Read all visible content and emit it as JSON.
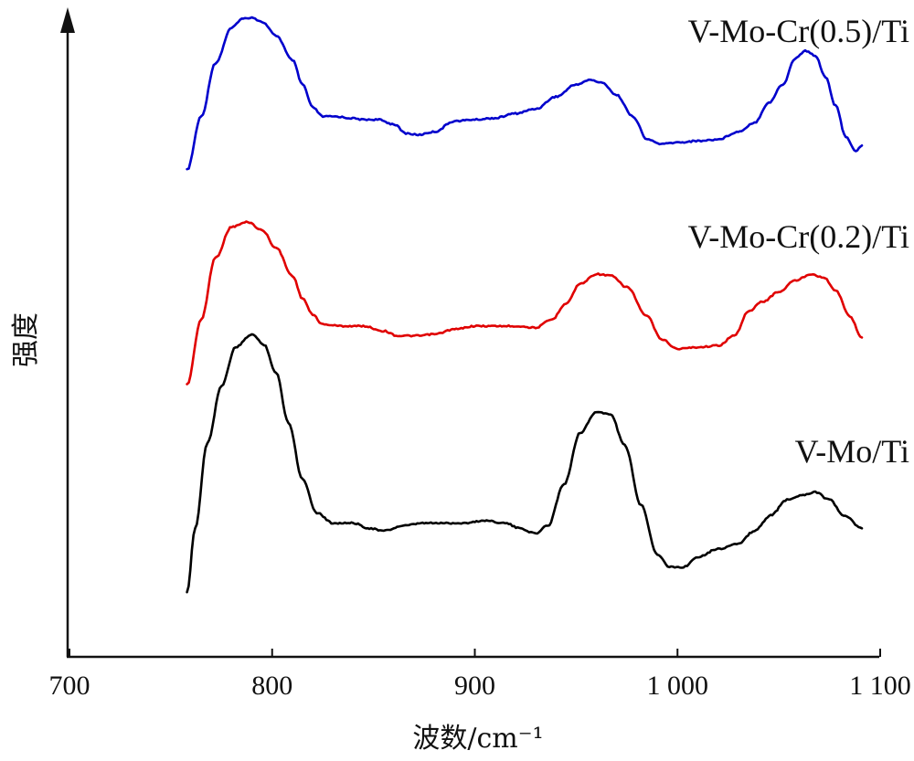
{
  "chart_data": {
    "type": "line",
    "title": "",
    "xlabel": "波数/cm⁻¹",
    "ylabel": "强度",
    "xlim": [
      700,
      1100
    ],
    "x_ticks": [
      700,
      800,
      900,
      1000,
      1100
    ],
    "x_tick_labels": [
      "700",
      "800",
      "900",
      "1 000",
      "1 100"
    ],
    "y_ticks_shown": false,
    "grid": false,
    "legend": "labels placed next to each curve",
    "series": [
      {
        "name": "V-Mo-Cr(0.5)/Ti",
        "color": "#0000cc",
        "points": [
          [
            758,
            0.0
          ],
          [
            765,
            0.35
          ],
          [
            772,
            0.7
          ],
          [
            780,
            0.93
          ],
          [
            785,
            0.99
          ],
          [
            790,
            1.0
          ],
          [
            795,
            0.97
          ],
          [
            802,
            0.88
          ],
          [
            810,
            0.72
          ],
          [
            815,
            0.56
          ],
          [
            820,
            0.41
          ],
          [
            825,
            0.35
          ],
          [
            832,
            0.35
          ],
          [
            838,
            0.34
          ],
          [
            845,
            0.33
          ],
          [
            852,
            0.33
          ],
          [
            860,
            0.3
          ],
          [
            866,
            0.24
          ],
          [
            872,
            0.23
          ],
          [
            880,
            0.25
          ],
          [
            890,
            0.32
          ],
          [
            900,
            0.33
          ],
          [
            910,
            0.34
          ],
          [
            920,
            0.37
          ],
          [
            930,
            0.4
          ],
          [
            940,
            0.48
          ],
          [
            950,
            0.56
          ],
          [
            957,
            0.59
          ],
          [
            963,
            0.57
          ],
          [
            970,
            0.49
          ],
          [
            978,
            0.35
          ],
          [
            985,
            0.2
          ],
          [
            992,
            0.17
          ],
          [
            1000,
            0.18
          ],
          [
            1010,
            0.19
          ],
          [
            1020,
            0.2
          ],
          [
            1030,
            0.25
          ],
          [
            1038,
            0.31
          ],
          [
            1045,
            0.44
          ],
          [
            1052,
            0.56
          ],
          [
            1058,
            0.73
          ],
          [
            1063,
            0.78
          ],
          [
            1068,
            0.75
          ],
          [
            1073,
            0.61
          ],
          [
            1078,
            0.42
          ],
          [
            1083,
            0.22
          ],
          [
            1088,
            0.12
          ],
          [
            1091,
            0.16
          ]
        ]
      },
      {
        "name": "V-Mo-Cr(0.2)/Ti",
        "color": "#e00000",
        "points": [
          [
            758,
            0.0
          ],
          [
            765,
            0.4
          ],
          [
            772,
            0.78
          ],
          [
            780,
            0.97
          ],
          [
            788,
            1.0
          ],
          [
            795,
            0.95
          ],
          [
            802,
            0.84
          ],
          [
            810,
            0.67
          ],
          [
            815,
            0.53
          ],
          [
            820,
            0.43
          ],
          [
            825,
            0.37
          ],
          [
            835,
            0.36
          ],
          [
            845,
            0.36
          ],
          [
            855,
            0.33
          ],
          [
            862,
            0.3
          ],
          [
            872,
            0.3
          ],
          [
            880,
            0.31
          ],
          [
            890,
            0.34
          ],
          [
            900,
            0.36
          ],
          [
            910,
            0.36
          ],
          [
            920,
            0.36
          ],
          [
            930,
            0.35
          ],
          [
            938,
            0.4
          ],
          [
            945,
            0.5
          ],
          [
            952,
            0.62
          ],
          [
            960,
            0.68
          ],
          [
            967,
            0.67
          ],
          [
            975,
            0.6
          ],
          [
            985,
            0.42
          ],
          [
            992,
            0.28
          ],
          [
            1000,
            0.22
          ],
          [
            1010,
            0.23
          ],
          [
            1020,
            0.24
          ],
          [
            1028,
            0.3
          ],
          [
            1035,
            0.45
          ],
          [
            1042,
            0.51
          ],
          [
            1050,
            0.57
          ],
          [
            1058,
            0.64
          ],
          [
            1066,
            0.68
          ],
          [
            1072,
            0.66
          ],
          [
            1078,
            0.58
          ],
          [
            1085,
            0.42
          ],
          [
            1091,
            0.29
          ]
        ]
      },
      {
        "name": "V-Mo/Ti",
        "color": "#000000",
        "points": [
          [
            758,
            0.0
          ],
          [
            762,
            0.25
          ],
          [
            768,
            0.58
          ],
          [
            775,
            0.8
          ],
          [
            782,
            0.95
          ],
          [
            790,
            1.0
          ],
          [
            796,
            0.96
          ],
          [
            802,
            0.85
          ],
          [
            808,
            0.66
          ],
          [
            815,
            0.44
          ],
          [
            822,
            0.31
          ],
          [
            830,
            0.27
          ],
          [
            840,
            0.27
          ],
          [
            848,
            0.25
          ],
          [
            855,
            0.24
          ],
          [
            865,
            0.26
          ],
          [
            875,
            0.27
          ],
          [
            885,
            0.27
          ],
          [
            895,
            0.27
          ],
          [
            905,
            0.28
          ],
          [
            915,
            0.27
          ],
          [
            922,
            0.25
          ],
          [
            930,
            0.23
          ],
          [
            936,
            0.26
          ],
          [
            944,
            0.42
          ],
          [
            952,
            0.62
          ],
          [
            960,
            0.7
          ],
          [
            967,
            0.69
          ],
          [
            974,
            0.57
          ],
          [
            982,
            0.34
          ],
          [
            990,
            0.15
          ],
          [
            996,
            0.1
          ],
          [
            1003,
            0.1
          ],
          [
            1010,
            0.14
          ],
          [
            1020,
            0.17
          ],
          [
            1030,
            0.19
          ],
          [
            1038,
            0.24
          ],
          [
            1046,
            0.3
          ],
          [
            1054,
            0.36
          ],
          [
            1062,
            0.38
          ],
          [
            1068,
            0.39
          ],
          [
            1075,
            0.36
          ],
          [
            1082,
            0.3
          ],
          [
            1091,
            0.25
          ]
        ]
      }
    ]
  }
}
